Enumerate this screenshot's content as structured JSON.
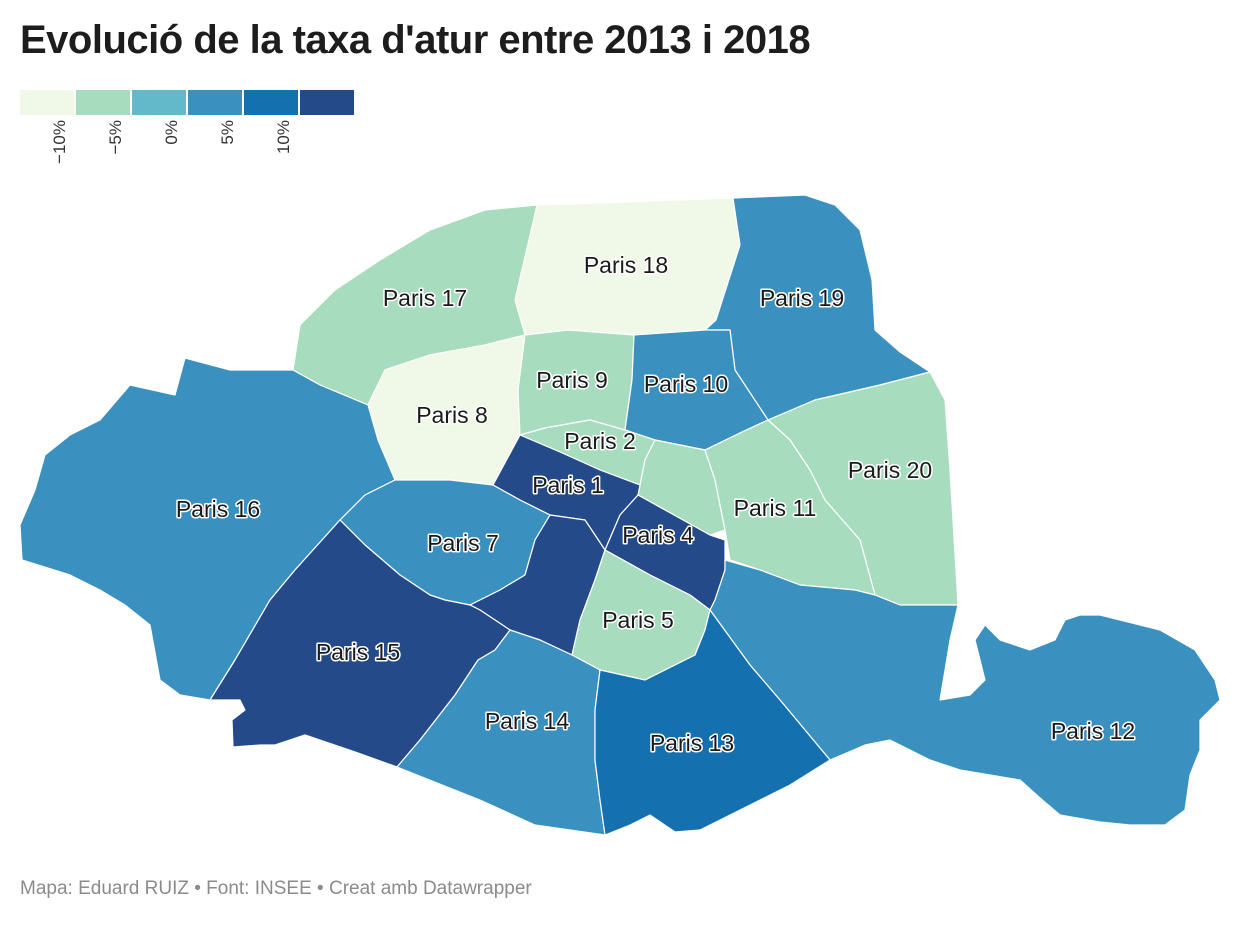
{
  "title": "Evolució de la taxa d'atur entre 2013 i 2018",
  "footer": "Mapa: Eduard RUIZ • Font: INSEE • Creat amb Datawrapper",
  "legend": {
    "bins": [
      {
        "color": "#f0f9e8",
        "tick": "−10%"
      },
      {
        "color": "#a8dcbe",
        "tick": "−5%"
      },
      {
        "color": "#64b9c8",
        "tick": "0%"
      },
      {
        "color": "#3a91c0",
        "tick": "5%"
      },
      {
        "color": "#1570b0",
        "tick": "10%"
      },
      {
        "color": "#244a8a",
        "tick": ""
      }
    ]
  },
  "regions": [
    {
      "id": "paris-18",
      "label": "Paris 18",
      "bin": 0
    },
    {
      "id": "paris-8",
      "label": "Paris 8",
      "bin": 0
    },
    {
      "id": "paris-17",
      "label": "Paris 17",
      "bin": 1
    },
    {
      "id": "paris-9",
      "label": "Paris 9",
      "bin": 1
    },
    {
      "id": "paris-2",
      "label": "Paris 2",
      "bin": 1
    },
    {
      "id": "paris-3",
      "label": "",
      "bin": 1
    },
    {
      "id": "paris-11",
      "label": "Paris 11",
      "bin": 1
    },
    {
      "id": "paris-20",
      "label": "Paris 20",
      "bin": 1
    },
    {
      "id": "paris-5",
      "label": "Paris 5",
      "bin": 1
    },
    {
      "id": "paris-19",
      "label": "Paris 19",
      "bin": 3
    },
    {
      "id": "paris-10",
      "label": "Paris 10",
      "bin": 3
    },
    {
      "id": "paris-16",
      "label": "Paris 16",
      "bin": 3
    },
    {
      "id": "paris-7",
      "label": "Paris 7",
      "bin": 3
    },
    {
      "id": "paris-14",
      "label": "Paris 14",
      "bin": 3
    },
    {
      "id": "paris-12",
      "label": "Paris 12",
      "bin": 3
    },
    {
      "id": "paris-13",
      "label": "Paris 13",
      "bin": 4
    },
    {
      "id": "paris-1",
      "label": "Paris 1",
      "bin": 5
    },
    {
      "id": "paris-4",
      "label": "Paris 4",
      "bin": 5
    },
    {
      "id": "paris-6",
      "label": "",
      "bin": 5
    },
    {
      "id": "paris-15",
      "label": "Paris 15",
      "bin": 5
    }
  ]
}
